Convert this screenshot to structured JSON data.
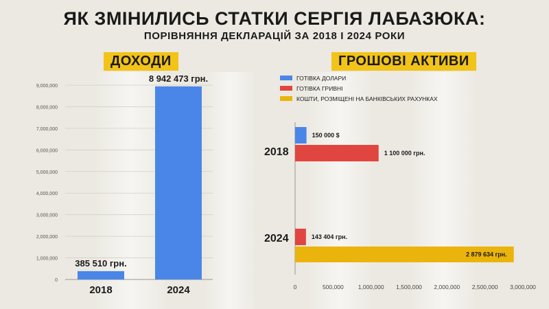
{
  "title": "ЯК ЗМІНИЛИСЬ СТАТКИ СЕРГІЯ ЛАБАЗЮКА:",
  "subtitle": "ПОРІВНЯННЯ ДЕКЛАРАЦІЙ ЗА 2018 І 2024 РОКИ",
  "colors": {
    "background": "#ece9e2",
    "accent_yellow": "#f2c318",
    "blue": "#4a86e8",
    "red": "#e0463f",
    "gold": "#ebb40c",
    "text": "#1a1a1a"
  },
  "chart_data": [
    {
      "type": "bar",
      "title": "ДОХОДИ",
      "categories": [
        "2018",
        "2024"
      ],
      "values": [
        385510,
        8942473
      ],
      "value_labels": [
        "385 510 грн.",
        "8 942 473 грн."
      ],
      "y_ticks": [
        "0",
        "1,000,000",
        "2,000,000",
        "3,000,000",
        "4,000,000",
        "5,000,000",
        "6,000,000",
        "7,000,000",
        "8,000,000",
        "9,000,000"
      ],
      "ylim": [
        0,
        9000000
      ],
      "grid": true,
      "color": "#4a86e8"
    },
    {
      "type": "bar",
      "orientation": "horizontal",
      "title": "ГРОШОВІ АКТИВИ",
      "categories": [
        "2018",
        "2024"
      ],
      "legend_position": "top-left",
      "series": [
        {
          "name": "ГОТІВКА ДОЛАРИ",
          "color": "#4a86e8",
          "values": [
            150000,
            null
          ],
          "value_labels": [
            "150 000 $",
            ""
          ]
        },
        {
          "name": "ГОТІВКА ГРИВНІ",
          "color": "#e0463f",
          "values": [
            1100000,
            143404
          ],
          "value_labels": [
            "1 100 000 грн.",
            "143 404 грн."
          ]
        },
        {
          "name": "КОШТИ, РОЗМІЩЕНІ НА БАНКІВСЬКИХ РАХУНКАХ",
          "color": "#ebb40c",
          "values": [
            null,
            2879634
          ],
          "value_labels": [
            "",
            "2 879 634 грн."
          ]
        }
      ],
      "x_ticks": [
        "0",
        "500,000",
        "1,000,000",
        "1,500,000",
        "2,000,000",
        "2,500,000",
        "3,000,000"
      ],
      "xlim": [
        0,
        3000000
      ]
    }
  ]
}
